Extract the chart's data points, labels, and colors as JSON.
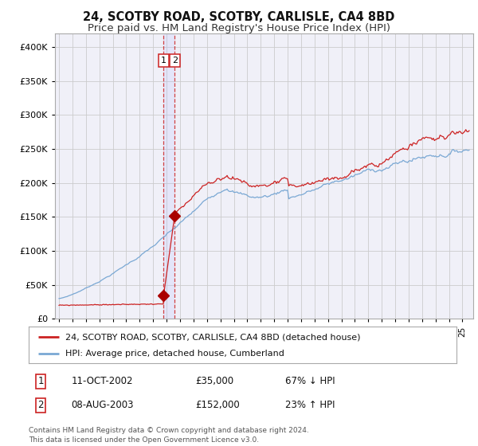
{
  "title": "24, SCOTBY ROAD, SCOTBY, CARLISLE, CA4 8BD",
  "subtitle": "Price paid vs. HM Land Registry's House Price Index (HPI)",
  "title_fontsize": 10.5,
  "subtitle_fontsize": 9.5,
  "hpi_color": "#7aa8d4",
  "price_color": "#cc2222",
  "marker_color": "#aa0000",
  "background_color": "#ffffff",
  "grid_color": "#cccccc",
  "plot_bg_color": "#f0f0f8",
  "ylim": [
    0,
    420000
  ],
  "yticks": [
    0,
    50000,
    100000,
    150000,
    200000,
    250000,
    300000,
    350000,
    400000
  ],
  "ytick_labels": [
    "£0",
    "£50K",
    "£100K",
    "£150K",
    "£200K",
    "£250K",
    "£300K",
    "£350K",
    "£400K"
  ],
  "sale1_date_num": 2002.78,
  "sale1_price": 35000,
  "sale1_label": "1",
  "sale1_date_str": "11-OCT-2002",
  "sale1_pct": "67% ↓ HPI",
  "sale2_date_num": 2003.6,
  "sale2_price": 152000,
  "sale2_label": "2",
  "sale2_date_str": "08-AUG-2003",
  "sale2_pct": "23% ↑ HPI",
  "legend_line1": "24, SCOTBY ROAD, SCOTBY, CARLISLE, CA4 8BD (detached house)",
  "legend_line2": "HPI: Average price, detached house, Cumberland",
  "footer1": "Contains HM Land Registry data © Crown copyright and database right 2024.",
  "footer2": "This data is licensed under the Open Government Licence v3.0."
}
